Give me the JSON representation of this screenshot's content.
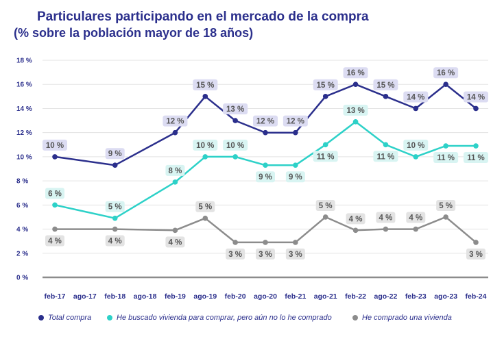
{
  "chart_data": {
    "type": "line",
    "title": "Particulares participando en el mercado de la compra",
    "subtitle": "(% sobre la población mayor de 18 años)",
    "categories": [
      "feb-17",
      "ago-17",
      "feb-18",
      "ago-18",
      "feb-19",
      "ago-19",
      "feb-20",
      "ago-20",
      "feb-21",
      "ago-21",
      "feb-22",
      "ago-22",
      "feb-23",
      "ago-23",
      "feb-24"
    ],
    "y_ticks": [
      "0 %",
      "2 %",
      "4 %",
      "6 %",
      "8 %",
      "10 %",
      "12 %",
      "14 %",
      "16 %",
      "18 %"
    ],
    "ylim": [
      0,
      18
    ],
    "grid": true,
    "legend_position": "bottom",
    "series": [
      {
        "name": "Total compra",
        "color": "#2b2f8c",
        "points": [
          {
            "i": 0,
            "v": 10,
            "label": "10 %",
            "pos": "above"
          },
          {
            "i": 2,
            "v": 9.3,
            "label": "9 %",
            "pos": "above"
          },
          {
            "i": 4,
            "v": 12,
            "label": "12 %",
            "pos": "above"
          },
          {
            "i": 5,
            "v": 15,
            "label": "15 %",
            "pos": "above"
          },
          {
            "i": 6,
            "v": 13,
            "label": "13 %",
            "pos": "above"
          },
          {
            "i": 7,
            "v": 12,
            "label": "12 %",
            "pos": "above"
          },
          {
            "i": 8,
            "v": 12,
            "label": "12 %",
            "pos": "above"
          },
          {
            "i": 9,
            "v": 15,
            "label": "15 %",
            "pos": "above"
          },
          {
            "i": 10,
            "v": 16,
            "label": "16 %",
            "pos": "above"
          },
          {
            "i": 11,
            "v": 15,
            "label": "15 %",
            "pos": "above"
          },
          {
            "i": 12,
            "v": 14,
            "label": "14 %",
            "pos": "above"
          },
          {
            "i": 13,
            "v": 16,
            "label": "16 %",
            "pos": "above"
          },
          {
            "i": 14,
            "v": 14,
            "label": "14 %",
            "pos": "above"
          }
        ]
      },
      {
        "name": "He buscado vivienda para comprar, pero aún no lo he comprado",
        "color": "#2dd1c8",
        "points": [
          {
            "i": 0,
            "v": 6,
            "label": "6 %",
            "pos": "above"
          },
          {
            "i": 2,
            "v": 4.9,
            "label": "5 %",
            "pos": "above"
          },
          {
            "i": 4,
            "v": 7.9,
            "label": "8 %",
            "pos": "above"
          },
          {
            "i": 5,
            "v": 10,
            "label": "10 %",
            "pos": "above"
          },
          {
            "i": 6,
            "v": 10,
            "label": "10 %",
            "pos": "above"
          },
          {
            "i": 7,
            "v": 9.3,
            "label": "9 %",
            "pos": "below"
          },
          {
            "i": 8,
            "v": 9.3,
            "label": "9 %",
            "pos": "below"
          },
          {
            "i": 9,
            "v": 11,
            "label": "11 %",
            "pos": "below"
          },
          {
            "i": 10,
            "v": 12.9,
            "label": "13 %",
            "pos": "above"
          },
          {
            "i": 11,
            "v": 11,
            "label": "11 %",
            "pos": "below"
          },
          {
            "i": 12,
            "v": 10,
            "label": "10 %",
            "pos": "above"
          },
          {
            "i": 13,
            "v": 10.9,
            "label": "11 %",
            "pos": "below"
          },
          {
            "i": 14,
            "v": 10.9,
            "label": "11 %",
            "pos": "below"
          }
        ]
      },
      {
        "name": "He comprado una vivienda",
        "color": "#8c8c8c",
        "points": [
          {
            "i": 0,
            "v": 4,
            "label": "4 %",
            "pos": "below"
          },
          {
            "i": 2,
            "v": 4,
            "label": "4 %",
            "pos": "below"
          },
          {
            "i": 4,
            "v": 3.9,
            "label": "4 %",
            "pos": "below"
          },
          {
            "i": 5,
            "v": 4.9,
            "label": "5 %",
            "pos": "above"
          },
          {
            "i": 6,
            "v": 2.9,
            "label": "3 %",
            "pos": "below"
          },
          {
            "i": 7,
            "v": 2.9,
            "label": "3 %",
            "pos": "below"
          },
          {
            "i": 8,
            "v": 2.9,
            "label": "3 %",
            "pos": "below"
          },
          {
            "i": 9,
            "v": 5,
            "label": "5 %",
            "pos": "above"
          },
          {
            "i": 10,
            "v": 3.9,
            "label": "4 %",
            "pos": "above"
          },
          {
            "i": 11,
            "v": 4,
            "label": "4 %",
            "pos": "above"
          },
          {
            "i": 12,
            "v": 4,
            "label": "4 %",
            "pos": "above"
          },
          {
            "i": 13,
            "v": 5,
            "label": "5 %",
            "pos": "above"
          },
          {
            "i": 14,
            "v": 2.9,
            "label": "3 %",
            "pos": "below"
          }
        ]
      }
    ]
  }
}
